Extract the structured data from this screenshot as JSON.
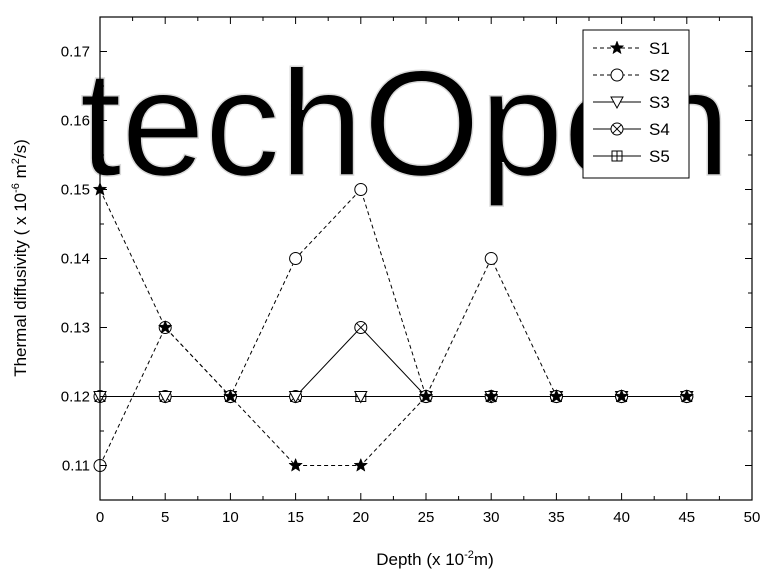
{
  "watermark": "techOpen",
  "chart_data": {
    "type": "line",
    "xlabel": "Depth (x 10",
    "xlabel_sup": "-2",
    "xlabel_tail": "m)",
    "ylabel": "Thermal diffusivity ( x 10",
    "ylabel_sup": "-6",
    "ylabel_mid": " m",
    "ylabel_sup2": "2",
    "ylabel_tail": "/s)",
    "xlim": [
      0,
      50
    ],
    "ylim": [
      0.105,
      0.175
    ],
    "xticks": [
      0,
      5,
      10,
      15,
      20,
      25,
      30,
      35,
      40,
      45,
      50
    ],
    "yticks": [
      0.11,
      0.12,
      0.13,
      0.14,
      0.15,
      0.16,
      0.17
    ],
    "ytick_labels": [
      "0.11",
      "0.12",
      "0.13",
      "0.14",
      "0.15",
      "0.16",
      "0.17"
    ],
    "legend_position": "top-right",
    "x": [
      0,
      5,
      10,
      15,
      20,
      25,
      30,
      35,
      40,
      45
    ],
    "series": [
      {
        "name": "S1",
        "marker": "star",
        "dash": true,
        "values": [
          0.15,
          0.13,
          0.12,
          0.11,
          0.11,
          0.12,
          0.12,
          0.12,
          0.12,
          0.12
        ]
      },
      {
        "name": "S2",
        "marker": "circle",
        "dash": true,
        "values": [
          0.11,
          0.13,
          0.12,
          0.14,
          0.15,
          0.12,
          0.14,
          0.12,
          0.12,
          0.12
        ]
      },
      {
        "name": "S3",
        "marker": "triangle",
        "dash": false,
        "values": [
          0.12,
          0.12,
          0.12,
          0.12,
          0.12,
          0.12,
          0.12,
          0.12,
          0.12,
          0.12
        ]
      },
      {
        "name": "S4",
        "marker": "circle-x",
        "dash": false,
        "values": [
          0.12,
          0.12,
          0.12,
          0.12,
          0.13,
          0.12,
          0.12,
          0.12,
          0.12,
          0.12
        ]
      },
      {
        "name": "S5",
        "marker": "square-plus",
        "dash": false,
        "values": [
          0.12,
          0.12,
          0.12,
          0.12,
          0.12,
          0.12,
          0.12,
          0.12,
          0.12,
          0.12
        ]
      }
    ]
  }
}
